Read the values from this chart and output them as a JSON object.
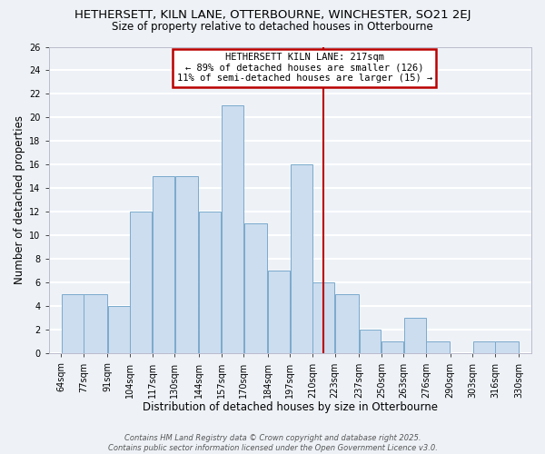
{
  "title": "HETHERSETT, KILN LANE, OTTERBOURNE, WINCHESTER, SO21 2EJ",
  "subtitle": "Size of property relative to detached houses in Otterbourne",
  "xlabel": "Distribution of detached houses by size in Otterbourne",
  "ylabel": "Number of detached properties",
  "bar_color": "#ccddef",
  "bar_edge_color": "#7aaacc",
  "background_color": "#eef2f7",
  "grid_color": "white",
  "bins": [
    64,
    77,
    91,
    104,
    117,
    130,
    144,
    157,
    170,
    184,
    197,
    210,
    223,
    237,
    250,
    263,
    276,
    290,
    303,
    316,
    330
  ],
  "counts": [
    5,
    5,
    4,
    12,
    15,
    15,
    12,
    21,
    11,
    7,
    16,
    6,
    5,
    2,
    1,
    3,
    1,
    0,
    1,
    1
  ],
  "tick_labels": [
    "64sqm",
    "77sqm",
    "91sqm",
    "104sqm",
    "117sqm",
    "130sqm",
    "144sqm",
    "157sqm",
    "170sqm",
    "184sqm",
    "197sqm",
    "210sqm",
    "223sqm",
    "237sqm",
    "250sqm",
    "263sqm",
    "276sqm",
    "290sqm",
    "303sqm",
    "316sqm",
    "330sqm"
  ],
  "vline_x": 216.5,
  "vline_color": "#bb0000",
  "annotation_title": "HETHERSETT KILN LANE: 217sqm",
  "annotation_line1": "← 89% of detached houses are smaller (126)",
  "annotation_line2": "11% of semi-detached houses are larger (15) →",
  "annotation_box_color": "white",
  "annotation_box_edge": "#bb0000",
  "ylim": [
    0,
    26
  ],
  "yticks": [
    0,
    2,
    4,
    6,
    8,
    10,
    12,
    14,
    16,
    18,
    20,
    22,
    24,
    26
  ],
  "footer1": "Contains HM Land Registry data © Crown copyright and database right 2025.",
  "footer2": "Contains public sector information licensed under the Open Government Licence v3.0.",
  "title_fontsize": 9.5,
  "subtitle_fontsize": 8.5,
  "axis_label_fontsize": 8.5,
  "tick_fontsize": 7,
  "annotation_fontsize": 7.5,
  "footer_fontsize": 6
}
